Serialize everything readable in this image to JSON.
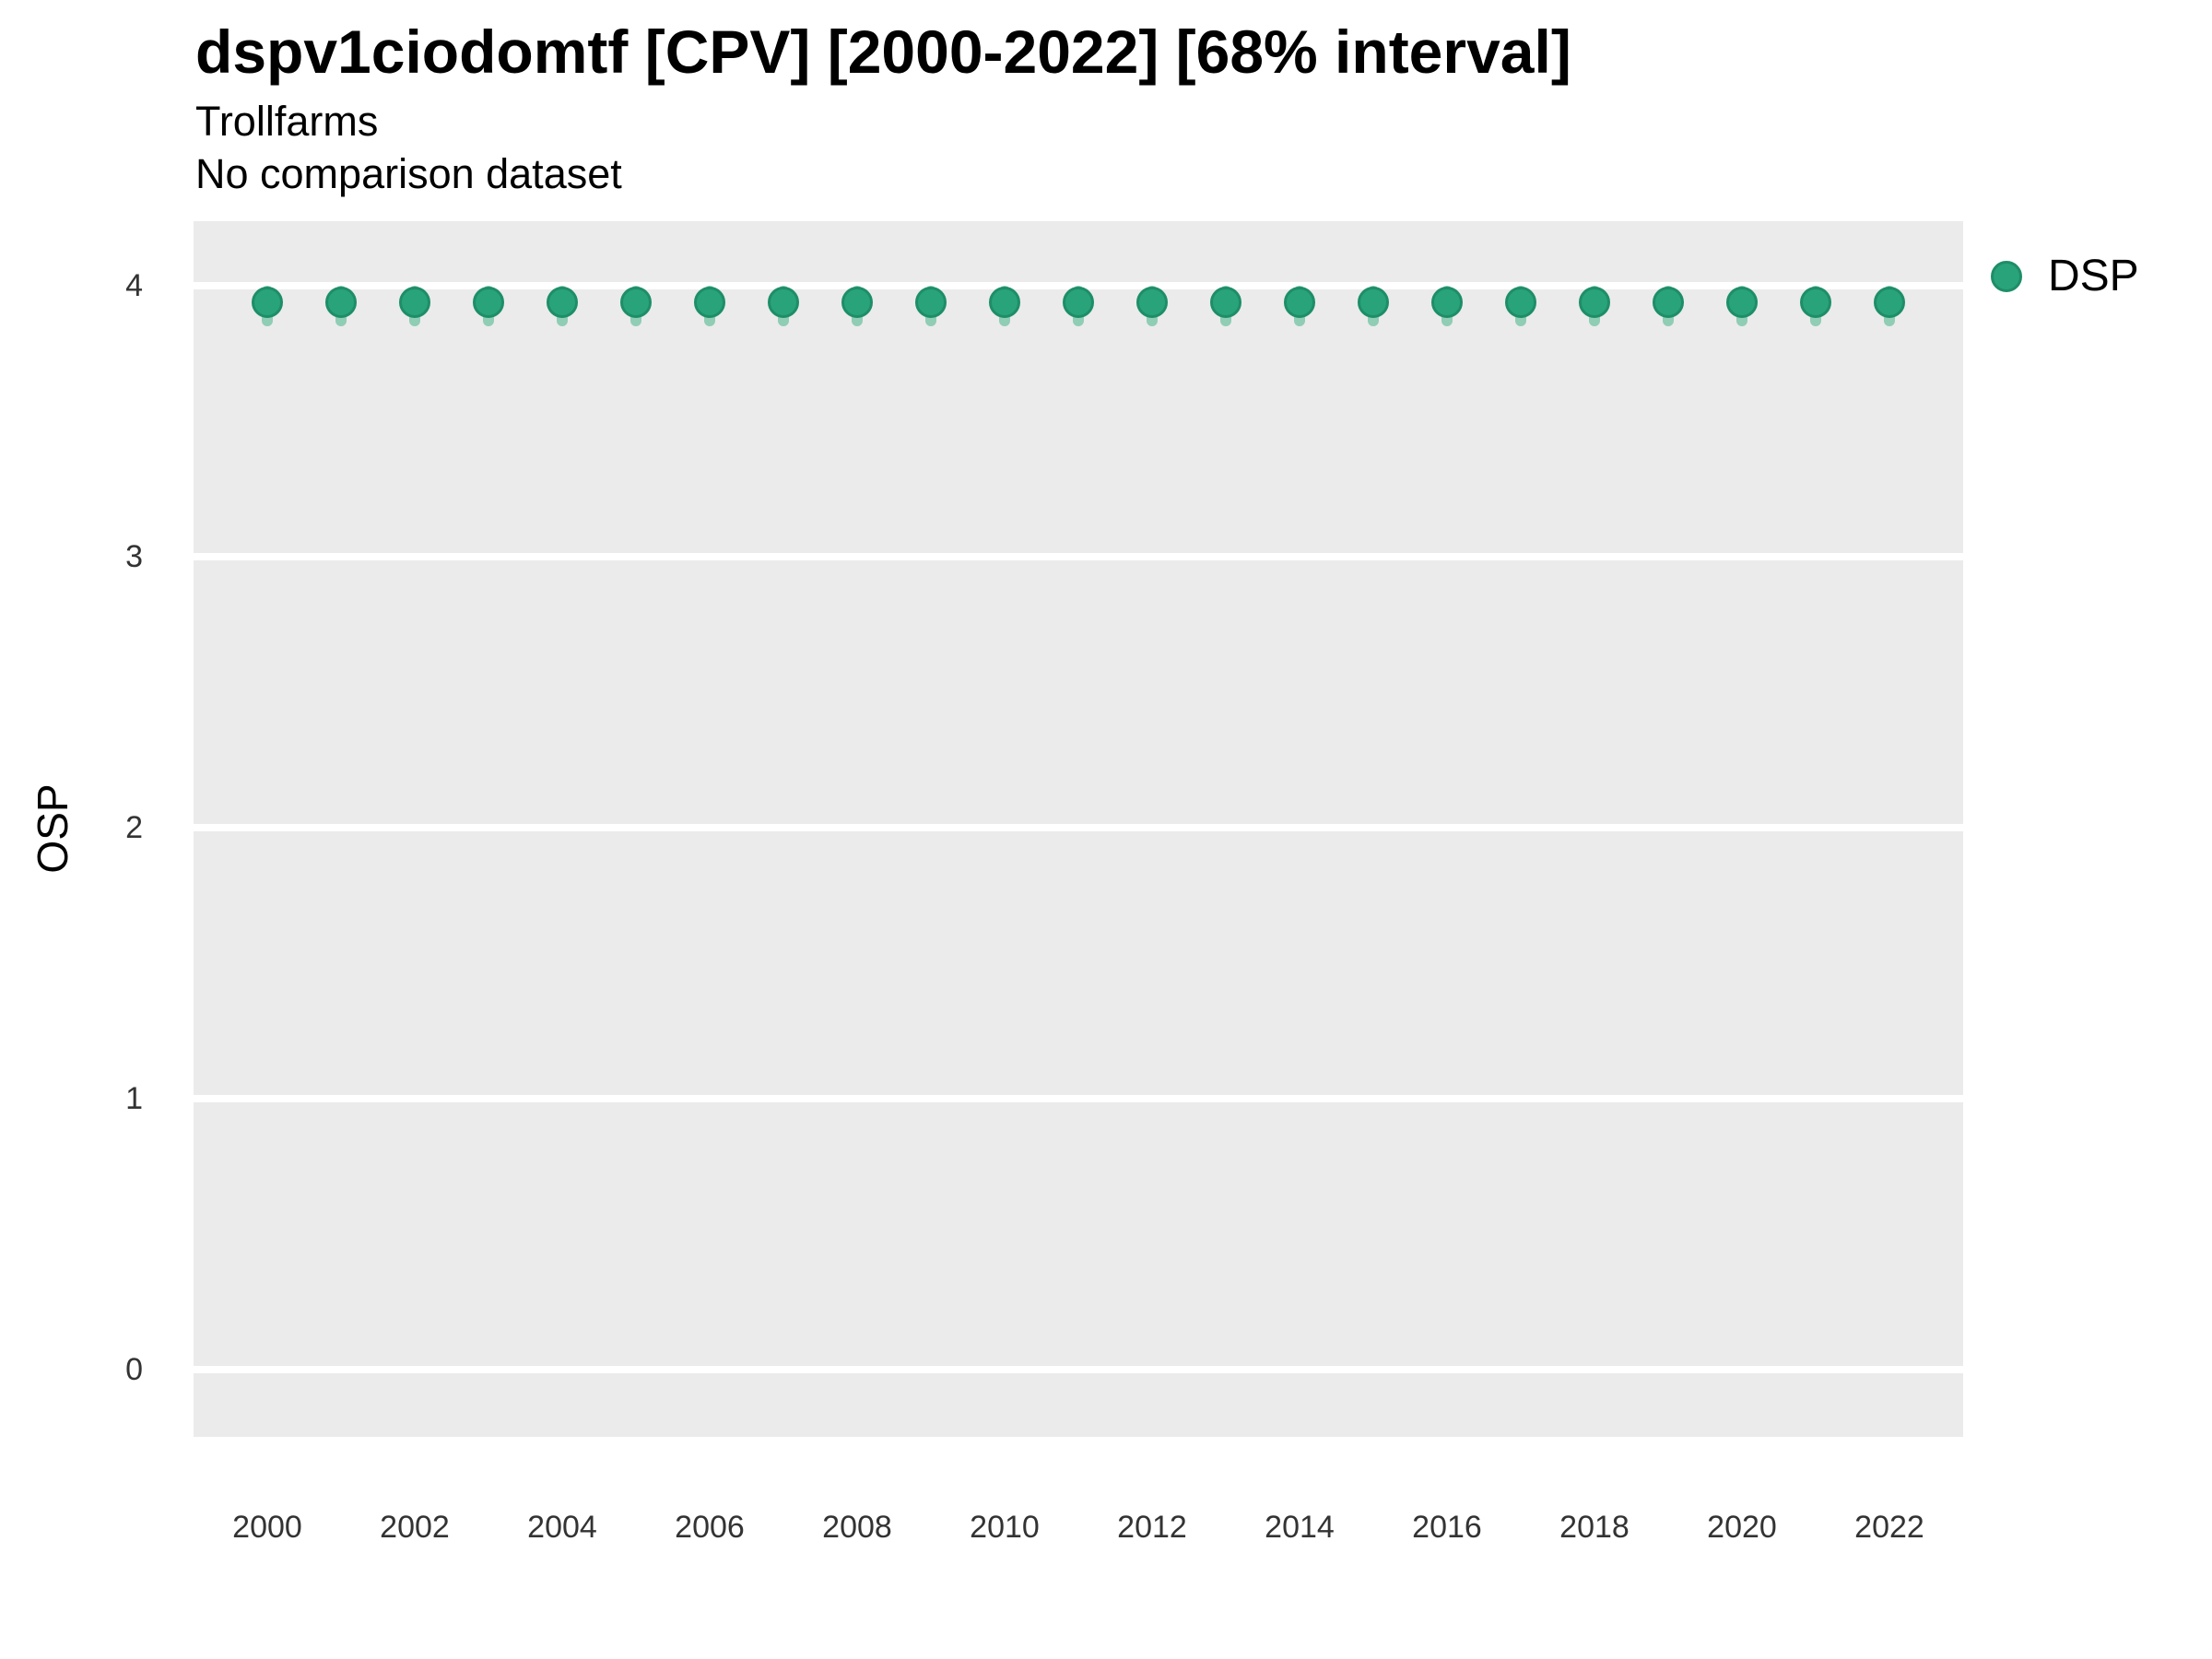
{
  "title": "dspv1ciodomtf [CPV] [2000-2022] [68% interval]",
  "subtitle1": "Trollfarms",
  "subtitle2": "No comparison dataset",
  "ylabel": "OSP",
  "legend": {
    "label": "DSP"
  },
  "colors": {
    "panel_bg": "#ebebeb",
    "gridline": "#ffffff",
    "point_fill": "#29a37a",
    "point_stroke": "#1e8e68",
    "interval_fill": "#8fcdb5",
    "tick_text": "#333333",
    "text": "#000000"
  },
  "chart_data": {
    "type": "scatter",
    "title": "dspv1ciodomtf [CPV] [2000-2022] [68% interval]",
    "subtitle": "Trollfarms — No comparison dataset",
    "xlabel": "",
    "ylabel": "OSP",
    "legend_position": "right",
    "grid": "major-horizontal-white-on-grey-panel",
    "ylim": [
      -0.25,
      4.25
    ],
    "yticks": [
      0,
      1,
      2,
      3,
      4
    ],
    "xticks": [
      2000,
      2002,
      2004,
      2006,
      2008,
      2010,
      2012,
      2014,
      2016,
      2018,
      2020,
      2022
    ],
    "x": [
      2000,
      2001,
      2002,
      2003,
      2004,
      2005,
      2006,
      2007,
      2008,
      2009,
      2010,
      2011,
      2012,
      2013,
      2014,
      2015,
      2016,
      2017,
      2018,
      2019,
      2020,
      2021,
      2022
    ],
    "series": [
      {
        "name": "DSP",
        "values": [
          3.94,
          3.94,
          3.94,
          3.94,
          3.94,
          3.94,
          3.94,
          3.94,
          3.94,
          3.94,
          3.94,
          3.94,
          3.94,
          3.94,
          3.94,
          3.94,
          3.94,
          3.94,
          3.94,
          3.94,
          3.94,
          3.94,
          3.94
        ],
        "interval_low": [
          3.85,
          3.85,
          3.85,
          3.85,
          3.85,
          3.85,
          3.85,
          3.85,
          3.85,
          3.85,
          3.85,
          3.85,
          3.85,
          3.85,
          3.85,
          3.85,
          3.85,
          3.85,
          3.85,
          3.85,
          3.85,
          3.85,
          3.85
        ],
        "interval_high": [
          4.0,
          4.0,
          4.0,
          4.0,
          4.0,
          4.0,
          4.0,
          4.0,
          4.0,
          4.0,
          4.0,
          4.0,
          4.0,
          4.0,
          4.0,
          4.0,
          4.0,
          4.0,
          4.0,
          4.0,
          4.0,
          4.0,
          4.0
        ],
        "interval_label": "68% interval"
      }
    ]
  }
}
